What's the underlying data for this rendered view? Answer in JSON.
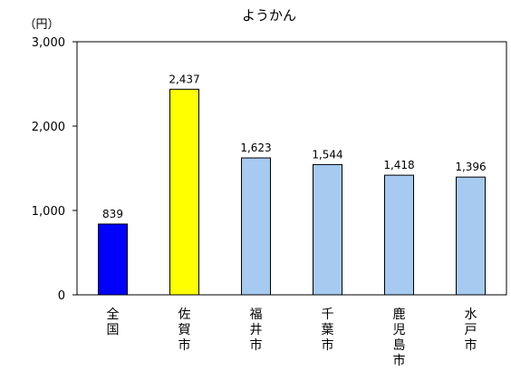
{
  "chart_data": {
    "type": "bar",
    "title": "ようかん",
    "y_unit": "（円）",
    "categories": [
      "全国",
      "佐賀市",
      "福井市",
      "千葉市",
      "鹿児島市",
      "水戸市"
    ],
    "values": [
      839,
      2437,
      1623,
      1544,
      1418,
      1396
    ],
    "value_labels": [
      "839",
      "2,437",
      "1,623",
      "1,544",
      "1,418",
      "1,396"
    ],
    "bar_colors": [
      "#0000ff",
      "#ffff00",
      "#a6caf0",
      "#a6caf0",
      "#a6caf0",
      "#a6caf0"
    ],
    "ylim": [
      0,
      3000
    ],
    "y_ticks": [
      0,
      1000,
      2000,
      3000
    ],
    "y_tick_labels": [
      "0",
      "1,000",
      "2,000",
      "3,000"
    ],
    "xlabel": "",
    "ylabel": "",
    "grid": false,
    "legend": "none"
  }
}
